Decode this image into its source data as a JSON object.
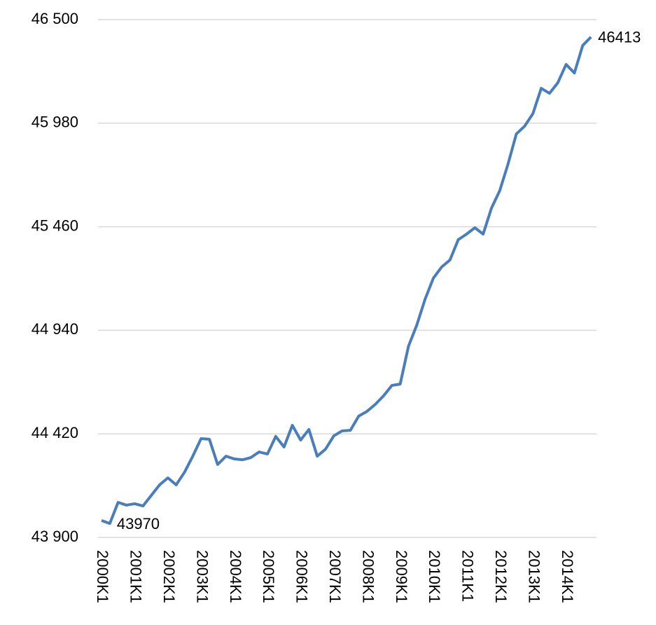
{
  "chart_data": {
    "type": "line",
    "categories": [
      "2000K1",
      null,
      null,
      null,
      "2001K1",
      null,
      null,
      null,
      "2002K1",
      null,
      null,
      null,
      "2003K1",
      null,
      null,
      null,
      "2004K1",
      null,
      null,
      null,
      "2005K1",
      null,
      null,
      null,
      "2006K1",
      null,
      null,
      null,
      "2007K1",
      null,
      null,
      null,
      "2008K1",
      null,
      null,
      null,
      "2009K1",
      null,
      null,
      null,
      "2010K1",
      null,
      null,
      null,
      "2011K1",
      null,
      null,
      null,
      "2012K1",
      null,
      null,
      null,
      "2013K1",
      null,
      null,
      null,
      "2014K1",
      null,
      null,
      null
    ],
    "series": [
      {
        "color": "#4a7ebb",
        "values": [
          43985,
          43970,
          44076,
          44062,
          44069,
          44058,
          44111,
          44164,
          44199,
          44164,
          44227,
          44308,
          44396,
          44393,
          44266,
          44308,
          44294,
          44290,
          44301,
          44329,
          44319,
          44407,
          44354,
          44463,
          44389,
          44442,
          44308,
          44343,
          44410,
          44435,
          44438,
          44509,
          44533,
          44568,
          44611,
          44663,
          44670,
          44860,
          44966,
          45096,
          45202,
          45258,
          45293,
          45395,
          45423,
          45455,
          45423,
          45553,
          45641,
          45775,
          45926,
          45965,
          46028,
          46155,
          46130,
          46183,
          46275,
          46232,
          46370,
          46413
        ]
      }
    ],
    "labeled_points": [
      1,
      59
    ],
    "ylim": [
      43900,
      46500
    ],
    "yticks": [
      {
        "value": 43900,
        "label": "43 900"
      },
      {
        "value": 44420,
        "label": "44 420"
      },
      {
        "value": 44940,
        "label": "44 940"
      },
      {
        "value": 45460,
        "label": "45 460"
      },
      {
        "value": 45980,
        "label": "45 980"
      },
      {
        "value": 46500,
        "label": "46 500"
      }
    ],
    "grid": true
  }
}
